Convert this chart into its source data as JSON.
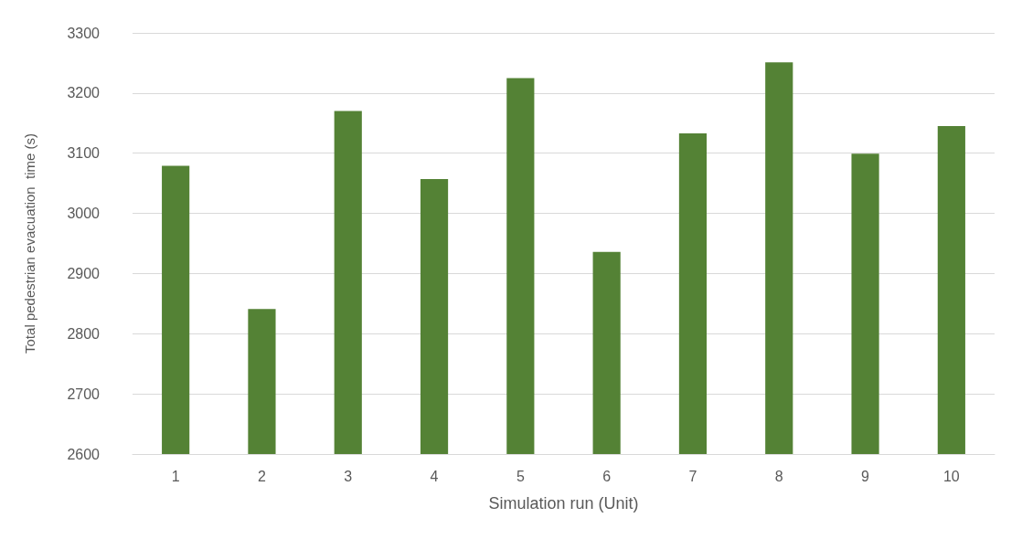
{
  "chart_data": {
    "type": "bar",
    "xlabel": "Simulation run (Unit)",
    "ylabel": "Total pedestrian evacuation  time (s)",
    "categories": [
      "1",
      "2",
      "3",
      "4",
      "5",
      "6",
      "7",
      "8",
      "9",
      "10"
    ],
    "values": [
      3079,
      2841,
      3170,
      3057,
      3225,
      2936,
      3133,
      3251,
      3099,
      3145
    ],
    "color": "#548235",
    "ylim": [
      2600,
      3300
    ],
    "yticks": [
      2600,
      2700,
      2800,
      2900,
      3000,
      3100,
      3200,
      3300
    ],
    "grid": "y"
  }
}
